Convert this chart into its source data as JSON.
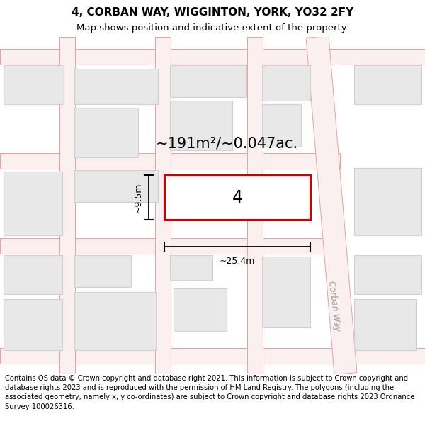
{
  "title": "4, CORBAN WAY, WIGGINTON, YORK, YO32 2FY",
  "subtitle": "Map shows position and indicative extent of the property.",
  "footer": "Contains OS data © Crown copyright and database right 2021. This information is subject to Crown copyright and database rights 2023 and is reproduced with the permission of HM Land Registry. The polygons (including the associated geometry, namely x, y co-ordinates) are subject to Crown copyright and database rights 2023 Ordnance Survey 100026316.",
  "background_color": "#ffffff",
  "map_bg": "#ffffff",
  "road_line_color": "#e8a0a0",
  "road_fill_color": "#faf0f0",
  "building_fill": "#e8e8e8",
  "building_edge": "#d0d0d0",
  "prop_color": "#cc0000",
  "area_text": "~191m²/~0.047ac.",
  "number_text": "4",
  "dim_width": "~25.4m",
  "dim_height": "~9.5m",
  "street_label": "Corban Way",
  "title_fontsize": 11,
  "subtitle_fontsize": 9.5,
  "footer_fontsize": 7.2,
  "area_fontsize": 15,
  "number_fontsize": 17,
  "dim_fontsize": 9
}
